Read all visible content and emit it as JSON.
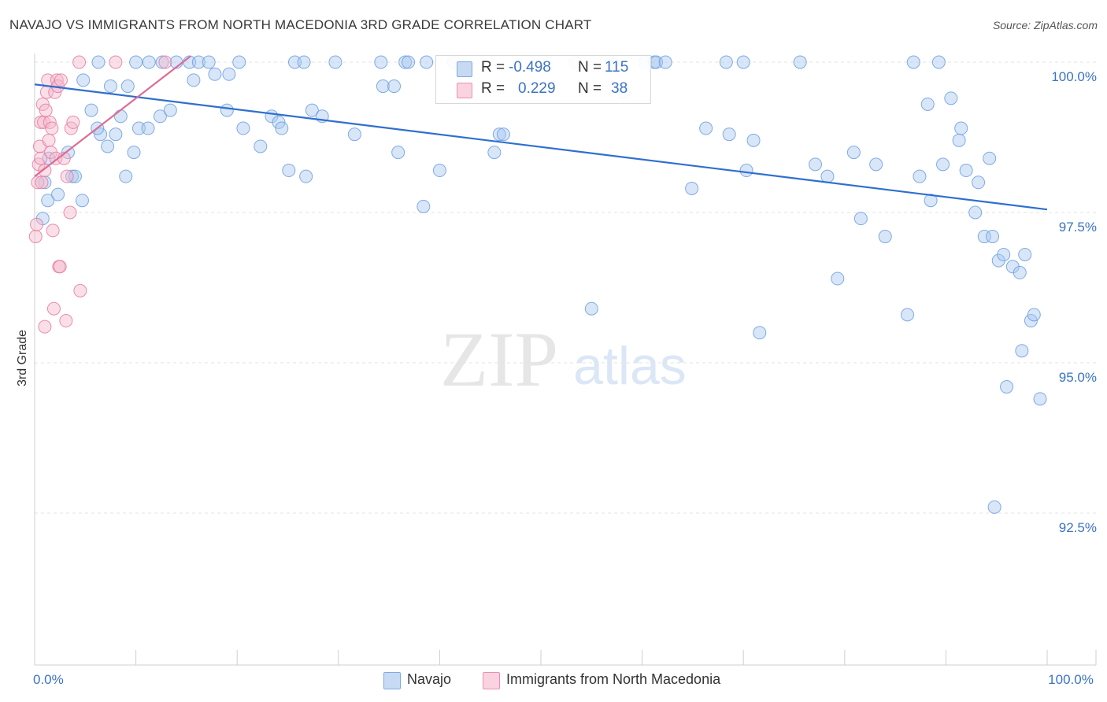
{
  "title": "NAVAJO VS IMMIGRANTS FROM NORTH MACEDONIA 3RD GRADE CORRELATION CHART",
  "source": "Source: ZipAtlas.com",
  "watermark": {
    "zip": "ZIP",
    "atlas": "atlas"
  },
  "legend": {
    "rows": [
      {
        "r_label": "R =",
        "r_value": "-0.498",
        "n_label": "N =",
        "n_value": "115",
        "color": "#a9c8ef"
      },
      {
        "r_label": "R =",
        "r_value": "0.229",
        "n_label": "N =",
        "n_value": "38",
        "color": "#f5b8cc"
      }
    ]
  },
  "bottom_legend": [
    {
      "label": "Navajo",
      "color": "#a9c8ef"
    },
    {
      "label": "Immigrants from North Macedonia",
      "color": "#f5b8cc"
    }
  ],
  "chart_data": {
    "type": "scatter",
    "ylabel": "3rd Grade",
    "xlabel": "",
    "xlim": [
      0,
      100
    ],
    "ylim": [
      90.0,
      100.5
    ],
    "y_ticks": [
      {
        "value": 100.0,
        "label": "100.0%"
      },
      {
        "value": 97.5,
        "label": "97.5%"
      },
      {
        "value": 95.0,
        "label": "95.0%"
      },
      {
        "value": 92.5,
        "label": "92.5%"
      }
    ],
    "x_tick_labels": [
      {
        "value": 0,
        "label": "0.0%"
      },
      {
        "value": 100,
        "label": "100.0%"
      }
    ],
    "grid": "horizontal dashed",
    "series": [
      {
        "name": "Navajo",
        "color": "#6b9fe0",
        "fill": "#a9c8ef",
        "trend": {
          "x": [
            0,
            100
          ],
          "y": [
            99.63,
            97.55
          ]
        },
        "points": [
          [
            1.0,
            98.0
          ],
          [
            1.3,
            97.7
          ],
          [
            3.3,
            98.5
          ],
          [
            3.7,
            98.1
          ],
          [
            4.7,
            97.7
          ],
          [
            4.0,
            98.1
          ],
          [
            4.8,
            99.7
          ],
          [
            5.6,
            99.2
          ],
          [
            6.5,
            98.8
          ],
          [
            6.2,
            98.9
          ],
          [
            7.2,
            98.6
          ],
          [
            7.5,
            99.6
          ],
          [
            8.0,
            98.8
          ],
          [
            8.5,
            99.1
          ],
          [
            9.2,
            99.6
          ],
          [
            9.8,
            98.5
          ],
          [
            10.0,
            100.0
          ],
          [
            10.3,
            98.9
          ],
          [
            11.2,
            98.9
          ],
          [
            11.3,
            100.0
          ],
          [
            12.4,
            99.1
          ],
          [
            12.6,
            100.0
          ],
          [
            13.4,
            99.2
          ],
          [
            14.0,
            100.0
          ],
          [
            15.3,
            100.0
          ],
          [
            15.7,
            99.7
          ],
          [
            16.2,
            100.0
          ],
          [
            17.2,
            100.0
          ],
          [
            17.8,
            99.8
          ],
          [
            19.0,
            99.2
          ],
          [
            19.2,
            99.8
          ],
          [
            20.2,
            100.0
          ],
          [
            20.6,
            98.9
          ],
          [
            22.3,
            98.6
          ],
          [
            23.4,
            99.1
          ],
          [
            24.1,
            99.0
          ],
          [
            24.4,
            98.9
          ],
          [
            25.1,
            98.2
          ],
          [
            25.7,
            100.0
          ],
          [
            26.6,
            100.0
          ],
          [
            26.8,
            98.1
          ],
          [
            27.4,
            99.2
          ],
          [
            28.4,
            99.1
          ],
          [
            29.7,
            100.0
          ],
          [
            31.6,
            98.8
          ],
          [
            34.2,
            100.0
          ],
          [
            34.4,
            99.6
          ],
          [
            35.5,
            99.6
          ],
          [
            35.9,
            98.5
          ],
          [
            36.6,
            100.0
          ],
          [
            36.9,
            100.0
          ],
          [
            38.4,
            97.6
          ],
          [
            38.7,
            100.0
          ],
          [
            40.0,
            98.2
          ],
          [
            41.4,
            100.0
          ],
          [
            45.4,
            98.5
          ],
          [
            45.9,
            98.8
          ],
          [
            46.3,
            98.8
          ],
          [
            53.4,
            100.0
          ],
          [
            55.0,
            95.9
          ],
          [
            57.0,
            100.0
          ],
          [
            58.2,
            99.5
          ],
          [
            60.3,
            100.0
          ],
          [
            61.2,
            100.0
          ],
          [
            61.4,
            100.0
          ],
          [
            62.3,
            100.0
          ],
          [
            64.9,
            97.9
          ],
          [
            66.3,
            98.9
          ],
          [
            68.3,
            100.0
          ],
          [
            68.6,
            98.8
          ],
          [
            70.0,
            100.0
          ],
          [
            70.3,
            98.2
          ],
          [
            71.0,
            98.7
          ],
          [
            71.6,
            95.5
          ],
          [
            75.6,
            100.0
          ],
          [
            77.1,
            98.3
          ],
          [
            78.3,
            98.1
          ],
          [
            79.3,
            96.4
          ],
          [
            80.9,
            98.5
          ],
          [
            81.6,
            97.4
          ],
          [
            83.1,
            98.3
          ],
          [
            84.0,
            97.1
          ],
          [
            86.2,
            95.8
          ],
          [
            86.8,
            100.0
          ],
          [
            87.4,
            98.1
          ],
          [
            88.2,
            99.3
          ],
          [
            88.5,
            97.7
          ],
          [
            89.3,
            100.0
          ],
          [
            89.7,
            98.3
          ],
          [
            90.5,
            99.4
          ],
          [
            91.3,
            98.7
          ],
          [
            91.5,
            98.9
          ],
          [
            92.0,
            98.2
          ],
          [
            92.9,
            97.5
          ],
          [
            93.2,
            98.0
          ],
          [
            93.8,
            97.1
          ],
          [
            94.3,
            98.4
          ],
          [
            94.6,
            97.1
          ],
          [
            94.8,
            92.6
          ],
          [
            95.2,
            96.7
          ],
          [
            95.7,
            96.8
          ],
          [
            96.0,
            94.6
          ],
          [
            96.6,
            96.6
          ],
          [
            97.3,
            96.5
          ],
          [
            97.5,
            95.2
          ],
          [
            97.8,
            96.8
          ],
          [
            98.4,
            95.7
          ],
          [
            98.7,
            95.8
          ],
          [
            99.3,
            94.4
          ],
          [
            0.8,
            97.4
          ],
          [
            1.4,
            98.4
          ],
          [
            2.3,
            97.8
          ],
          [
            6.3,
            100.0
          ],
          [
            9.0,
            98.1
          ]
        ]
      },
      {
        "name": "Immigrants from North Macedonia",
        "color": "#e47ba0",
        "fill": "#f5b8cc",
        "trend": {
          "x": [
            0,
            15.4
          ],
          "y": [
            98.1,
            100.1
          ]
        },
        "points": [
          [
            0.1,
            97.1
          ],
          [
            0.2,
            97.3
          ],
          [
            0.3,
            98.0
          ],
          [
            0.4,
            98.3
          ],
          [
            0.5,
            98.6
          ],
          [
            0.6,
            99.0
          ],
          [
            0.7,
            98.0
          ],
          [
            0.8,
            99.3
          ],
          [
            0.9,
            99.0
          ],
          [
            1.0,
            98.2
          ],
          [
            1.1,
            99.2
          ],
          [
            1.2,
            99.5
          ],
          [
            1.3,
            99.7
          ],
          [
            1.4,
            98.7
          ],
          [
            1.5,
            99.0
          ],
          [
            1.6,
            98.5
          ],
          [
            1.7,
            98.9
          ],
          [
            1.8,
            97.2
          ],
          [
            1.9,
            95.9
          ],
          [
            2.0,
            99.5
          ],
          [
            2.1,
            98.4
          ],
          [
            2.2,
            99.7
          ],
          [
            2.3,
            99.6
          ],
          [
            2.4,
            96.6
          ],
          [
            2.5,
            96.6
          ],
          [
            2.6,
            99.7
          ],
          [
            2.9,
            98.4
          ],
          [
            3.1,
            95.7
          ],
          [
            3.2,
            98.1
          ],
          [
            3.5,
            97.5
          ],
          [
            3.6,
            98.9
          ],
          [
            3.8,
            99.0
          ],
          [
            4.5,
            96.2
          ],
          [
            4.4,
            100.0
          ],
          [
            8.0,
            100.0
          ],
          [
            12.9,
            100.0
          ],
          [
            1.0,
            95.6
          ],
          [
            0.6,
            98.4
          ]
        ]
      }
    ]
  }
}
